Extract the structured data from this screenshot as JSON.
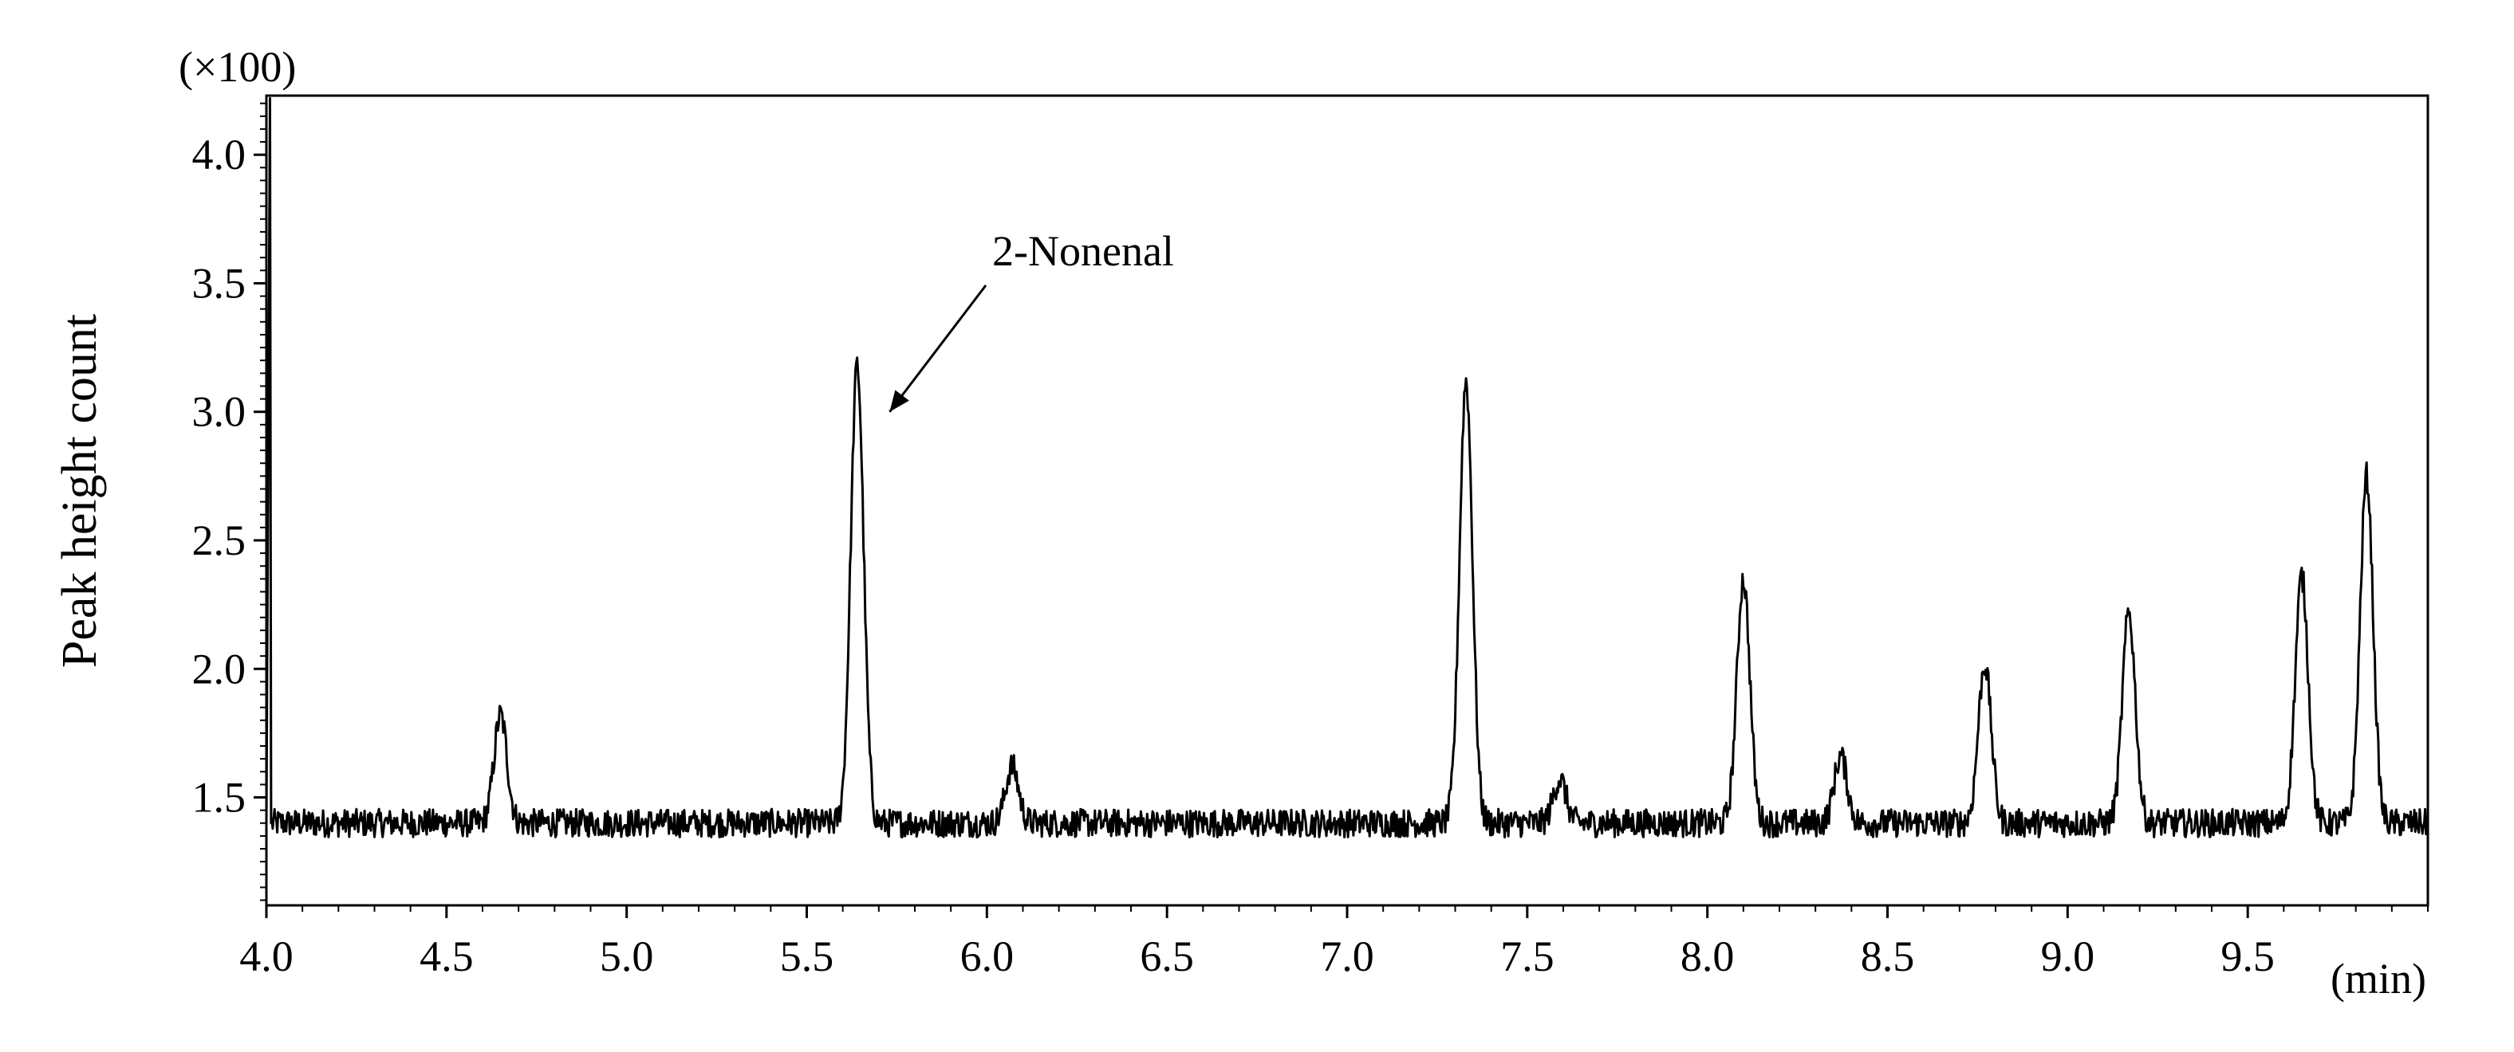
{
  "chart_data": {
    "type": "line",
    "title": "",
    "xlabel": "(min)",
    "ylabel": "Peak height count",
    "y_multiplier": "(×100)",
    "xlim": [
      4.0,
      10.0
    ],
    "ylim": [
      1.08,
      4.23
    ],
    "xticks": [
      "4.0",
      "4.5",
      "5.0",
      "5.5",
      "6.0",
      "6.5",
      "7.0",
      "7.5",
      "8.0",
      "8.5",
      "9.0",
      "9.5"
    ],
    "yticks": [
      "1.5",
      "2.0",
      "2.5",
      "3.0",
      "3.5",
      "4.0"
    ],
    "grid": false,
    "series_color": "#000000",
    "baseline": 1.4,
    "noise_amplitude": 0.055,
    "initial_spike": {
      "x": 4.01,
      "y": 4.22
    },
    "peaks": [
      {
        "x": 4.65,
        "y": 1.82
      },
      {
        "x": 5.64,
        "y": 3.18
      },
      {
        "x": 6.07,
        "y": 1.62
      },
      {
        "x": 7.33,
        "y": 3.12
      },
      {
        "x": 7.59,
        "y": 1.57
      },
      {
        "x": 8.1,
        "y": 2.35
      },
      {
        "x": 8.37,
        "y": 1.66
      },
      {
        "x": 8.77,
        "y": 2.02
      },
      {
        "x": 9.17,
        "y": 2.22
      },
      {
        "x": 9.65,
        "y": 2.36
      },
      {
        "x": 9.83,
        "y": 2.75
      }
    ],
    "annotations": [
      {
        "text": "2-Nonenal",
        "target_x": 5.73,
        "target_y": 3.0
      }
    ]
  }
}
